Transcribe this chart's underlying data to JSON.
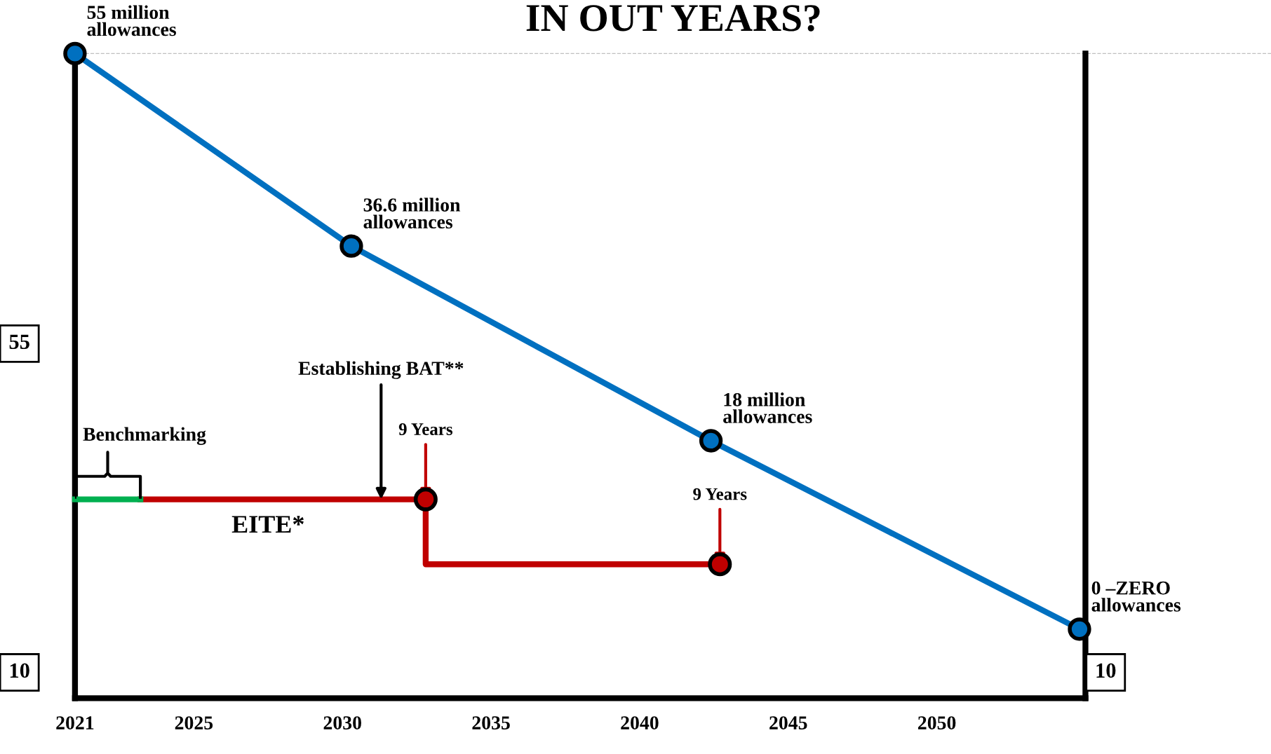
{
  "chart_data": {
    "type": "line",
    "title": "IN OUT YEARS?",
    "xlim": [
      2021,
      2055
    ],
    "ylim": [
      -6.6,
      55
    ],
    "xticks": [
      2021,
      2025,
      2030,
      2035,
      2040,
      2045,
      2050
    ],
    "tick_labels": "x",
    "grid": false,
    "series": [
      {
        "color": "#0070c0",
        "marker": "circle",
        "x": [
          2021,
          2030.3,
          2042.4,
          2054.8
        ],
        "values": [
          55,
          36.6,
          18,
          0
        ],
        "value_labels": [
          "55 million\nallowances",
          "36.6 million\nallowances",
          "18 million\nallowances",
          "0 –ZERO\nallowances"
        ]
      },
      {
        "color": "#c00000",
        "marker": "none",
        "x": [
          2023.2,
          2032.8,
          2032.8,
          2042.7
        ],
        "values": [
          12.4,
          12.4,
          6.2,
          6.2
        ]
      },
      {
        "color": "#00b050",
        "marker": "none",
        "x": [
          2021,
          2023.2
        ],
        "values": [
          12.4,
          12.4
        ]
      },
      {
        "type": "scatter",
        "color": "#c00000",
        "marker": "circle",
        "x": [
          2032.8,
          2042.7
        ],
        "values": [
          12.4,
          6.2
        ]
      }
    ],
    "ref_lines": [
      {
        "axis": "y",
        "value": 55,
        "color": "#bfbfbf",
        "line_style": "dashed"
      }
    ],
    "annotations": [
      "Benchmarking",
      {
        "text": "EITE*",
        "x": 2027.5,
        "y": 12.4
      },
      {
        "text": "Establishing BAT**",
        "x": 2031.3,
        "y": 12.4
      },
      {
        "text": "9 Years",
        "x": 2032.8,
        "y": 12.4
      },
      {
        "text": "9 Years",
        "x": 2042.7,
        "y": 6.2
      },
      "55",
      "10",
      "10"
    ]
  }
}
